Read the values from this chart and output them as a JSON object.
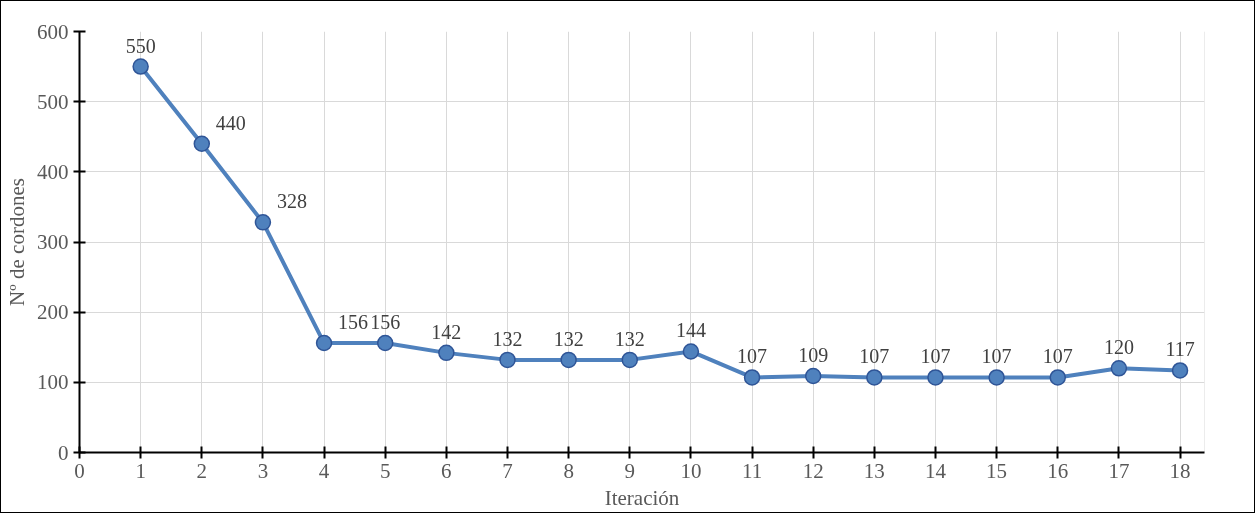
{
  "chart_data": {
    "type": "line",
    "xlabel": "Iteración",
    "ylabel": "Nº de cordones",
    "x": [
      1,
      2,
      3,
      4,
      5,
      6,
      7,
      8,
      9,
      10,
      11,
      12,
      13,
      14,
      15,
      16,
      17,
      18
    ],
    "series": [
      {
        "color": "#4f81bd",
        "values": [
          550,
          440,
          328,
          156,
          156,
          142,
          132,
          132,
          132,
          144,
          107,
          109,
          107,
          107,
          107,
          107,
          120,
          117
        ]
      }
    ],
    "xlim": [
      0,
      18.4
    ],
    "xticks": [
      0,
      1,
      2,
      3,
      4,
      5,
      6,
      7,
      8,
      9,
      10,
      11,
      12,
      13,
      14,
      15,
      16,
      17,
      18
    ],
    "ylim": [
      0,
      600
    ],
    "yticks": [
      0,
      100,
      200,
      300,
      400,
      500,
      600
    ],
    "grid": true,
    "marker": "circle",
    "line_style": "solid",
    "data_labels": true
  }
}
